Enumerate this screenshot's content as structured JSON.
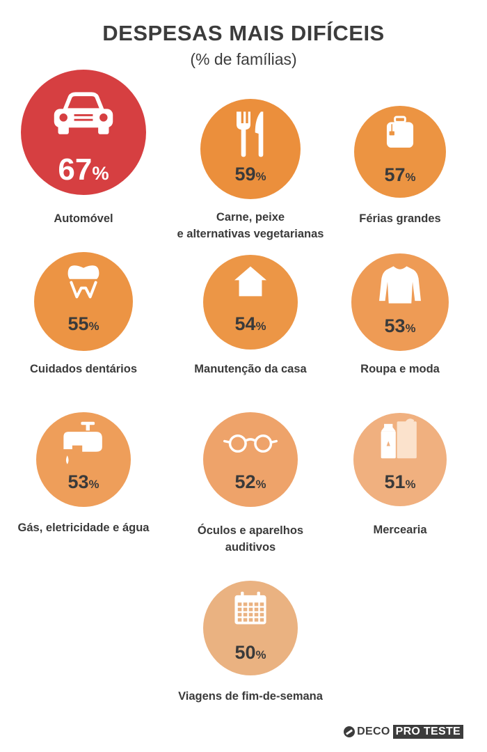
{
  "header": {
    "title": "DESPESAS MAIS DIFÍCEIS",
    "subtitle": "(% de famílias)"
  },
  "percent_symbol": "%",
  "chart_data": {
    "type": "bubble",
    "title": "DESPESAS MAIS DIFÍCEIS",
    "subtitle": "(% de famílias)",
    "unit": "%",
    "categories": [
      "Automóvel",
      "Carne, peixe e alternativas vegetarianas",
      "Férias grandes",
      "Cuidados dentários",
      "Manutenção da casa",
      "Roupa e moda",
      "Gás, eletricidade e água",
      "Óculos e aparelhos auditivos",
      "Mercearia",
      "Viagens de fim-de-semana"
    ],
    "values": [
      67,
      59,
      57,
      55,
      54,
      53,
      53,
      52,
      51,
      50
    ]
  },
  "items": [
    {
      "value": "67",
      "label_lines": [
        "Automóvel"
      ],
      "icon": "car-icon",
      "color": "#d63f41",
      "text_color": "#ffffff"
    },
    {
      "value": "59",
      "label_lines": [
        "Carne, peixe",
        "e alternativas vegetarianas"
      ],
      "icon": "fork-knife-icon",
      "color": "#eb8f3c",
      "text_color": "#3a3a3a"
    },
    {
      "value": "57",
      "label_lines": [
        "Férias grandes"
      ],
      "icon": "suitcase-icon",
      "color": "#ec9442",
      "text_color": "#3a3a3a"
    },
    {
      "value": "55",
      "label_lines": [
        "Cuidados dentários"
      ],
      "icon": "tooth-icon",
      "color": "#ec9444",
      "text_color": "#3a3a3a"
    },
    {
      "value": "54",
      "label_lines": [
        "Manutenção da casa"
      ],
      "icon": "house-icon",
      "color": "#ec9646",
      "text_color": "#3a3a3a"
    },
    {
      "value": "53",
      "label_lines": [
        "Roupa e moda"
      ],
      "icon": "sweater-icon",
      "color": "#ee9b55",
      "text_color": "#3a3a3a"
    },
    {
      "value": "53",
      "label_lines": [
        "Gás, eletricidade e água"
      ],
      "icon": "faucet-icon",
      "color": "#ee9e5a",
      "text_color": "#3a3a3a"
    },
    {
      "value": "52",
      "label_lines": [
        "Óculos e aparelhos",
        "auditivos"
      ],
      "icon": "glasses-icon",
      "color": "#eea36a",
      "text_color": "#3a3a3a"
    },
    {
      "value": "51",
      "label_lines": [
        "Mercearia"
      ],
      "icon": "groceries-icon",
      "color": "#f0b07f",
      "text_color": "#3a3a3a"
    },
    {
      "value": "50",
      "label_lines": [
        "Viagens de fim-de-semana"
      ],
      "icon": "calendar-icon",
      "color": "#eab281",
      "text_color": "#3a3a3a"
    }
  ],
  "logo": {
    "deco": "DECO",
    "proteste": "PRO TESTE"
  }
}
